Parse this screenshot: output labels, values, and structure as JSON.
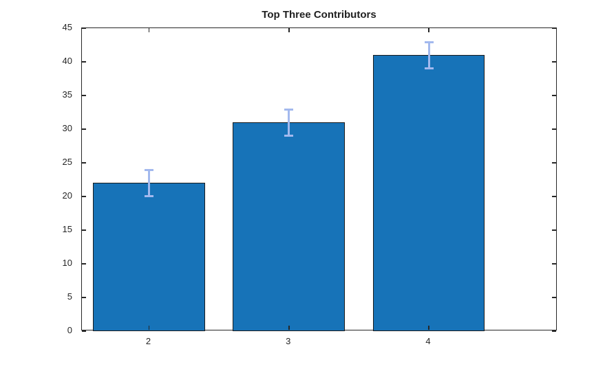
{
  "title": "Top Three Contributors",
  "colors": {
    "bar_fill": "#1773B8",
    "bar_edge": "#1A1A1A",
    "error_bar": "#A3B9EE",
    "axis": "#262626",
    "tick_label": "#262626",
    "title_text": "#1F1F1F",
    "background": "#FFFFFF"
  },
  "chart_data": {
    "type": "bar",
    "title": "Top Three Contributors",
    "categories": [
      "2",
      "3",
      "4"
    ],
    "x_values": [
      2,
      3,
      4
    ],
    "values": [
      22,
      31,
      41
    ],
    "error": [
      2,
      2,
      2
    ],
    "bar_width_units": 0.8,
    "xlabel": "",
    "ylabel": "",
    "xlim": [
      1.52,
      4.92
    ],
    "ylim": [
      0,
      45
    ],
    "y_ticks": [
      0,
      5,
      10,
      15,
      20,
      25,
      30,
      35,
      40,
      45
    ],
    "grid": false,
    "legend": null,
    "error_bar_style": "vertical line with caps, drawn over bar top"
  }
}
